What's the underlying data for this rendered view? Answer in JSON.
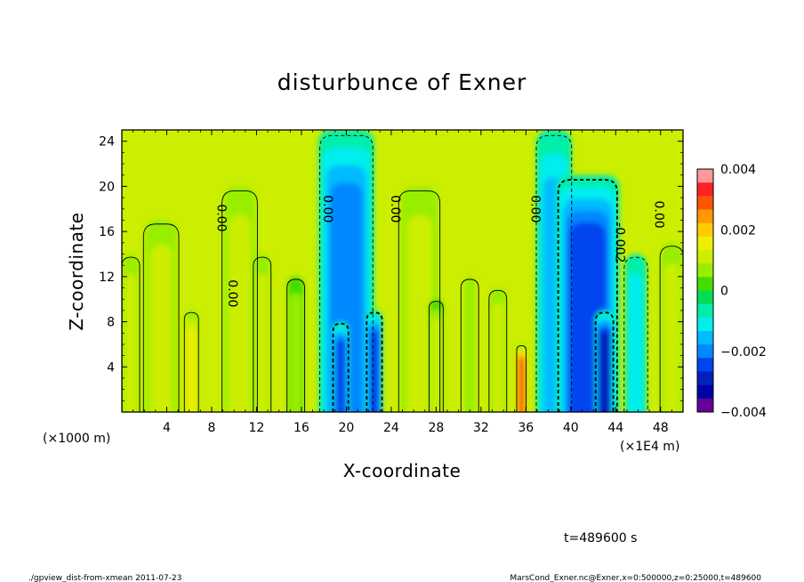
{
  "chart_data": {
    "type": "heatmap",
    "title": "disturbunce of Exner",
    "xlabel": "X-coordinate",
    "ylabel": "Z-coordinate",
    "x_unit_label": "(×1E4 m)",
    "y_unit_label": "(×1000 m)",
    "xlim": [
      0,
      50
    ],
    "ylim": [
      0,
      25
    ],
    "x_ticks": [
      4,
      8,
      12,
      16,
      20,
      24,
      28,
      32,
      36,
      40,
      44,
      48
    ],
    "y_ticks": [
      4,
      8,
      12,
      16,
      20,
      24
    ],
    "x_tick_labels": [
      "4",
      "8",
      "12",
      "16",
      "20",
      "24",
      "28",
      "32",
      "36",
      "40",
      "44",
      "48"
    ],
    "y_tick_labels": [
      "4",
      "8",
      "12",
      "16",
      "20",
      "24"
    ],
    "colorbar": {
      "range": [
        -0.004,
        0.004
      ],
      "tick_values": [
        0.004,
        0.002,
        0,
        -0.002,
        -0.004
      ],
      "tick_labels": [
        "0.004",
        "0.002",
        "0",
        "−0.002",
        "−0.004"
      ],
      "colors": [
        "#ff9999",
        "#ff2222",
        "#ff5500",
        "#ff9900",
        "#ffcc00",
        "#eeee00",
        "#ccee00",
        "#99ee00",
        "#44dd00",
        "#00dd55",
        "#00eeaa",
        "#00eeee",
        "#00bbff",
        "#0088ff",
        "#0044ee",
        "#0022bb",
        "#0000aa",
        "#660099"
      ]
    },
    "contour_labels": [
      {
        "text": "0.00",
        "x": 8.5,
        "y": 17.2
      },
      {
        "text": "0.00",
        "x": 9.5,
        "y": 10.5
      },
      {
        "text": "0.00",
        "x": 18,
        "y": 18
      },
      {
        "text": "0.00",
        "x": 24,
        "y": 18
      },
      {
        "text": "0.00",
        "x": 36.5,
        "y": 18
      },
      {
        "text": "-0.002",
        "x": 44,
        "y": 15
      },
      {
        "text": "0.00",
        "x": 47.5,
        "y": 17.5
      }
    ],
    "anomaly_columns": [
      {
        "x": 3.5,
        "w": 3.0,
        "v": 0.0012,
        "top": 17
      },
      {
        "x": 6.2,
        "w": 1.2,
        "v": 0.0016,
        "top": 9
      },
      {
        "x": 10.5,
        "w": 3.0,
        "v": 0.0009,
        "top": 20
      },
      {
        "x": 12.5,
        "w": 1.5,
        "v": 0.0011,
        "top": 14
      },
      {
        "x": 15.5,
        "w": 1.5,
        "v": 0.0008,
        "top": 12
      },
      {
        "x": 20.0,
        "w": 4.5,
        "v": -0.0018,
        "top": 25
      },
      {
        "x": 19.5,
        "w": 1.3,
        "v": -0.0026,
        "top": 8
      },
      {
        "x": 22.5,
        "w": 1.3,
        "v": -0.0025,
        "top": 9
      },
      {
        "x": 26.5,
        "w": 3.5,
        "v": 0.0011,
        "top": 20
      },
      {
        "x": 28.0,
        "w": 1.2,
        "v": 0.0013,
        "top": 10
      },
      {
        "x": 31.0,
        "w": 1.5,
        "v": 0.0007,
        "top": 12
      },
      {
        "x": 33.5,
        "w": 1.5,
        "v": 0.001,
        "top": 11
      },
      {
        "x": 35.6,
        "w": 0.8,
        "v": 0.003,
        "top": 6
      },
      {
        "x": 38.5,
        "w": 3.0,
        "v": -0.0014,
        "top": 25
      },
      {
        "x": 41.5,
        "w": 5.0,
        "v": -0.0026,
        "top": 21
      },
      {
        "x": 43.0,
        "w": 1.5,
        "v": -0.0031,
        "top": 9
      },
      {
        "x": 45.8,
        "w": 2.0,
        "v": -0.0012,
        "top": 14
      },
      {
        "x": 49.0,
        "w": 2.0,
        "v": 0.001,
        "top": 15
      },
      {
        "x": 0.8,
        "w": 1.5,
        "v": 0.0012,
        "top": 14
      }
    ],
    "timestamp_label": "t=489600 s"
  },
  "footer": {
    "left": "./gpview_dist-from-xmean  2011-07-23",
    "right": "MarsCond_Exner.nc@Exner,x=0:500000,z=0:25000,t=489600"
  }
}
